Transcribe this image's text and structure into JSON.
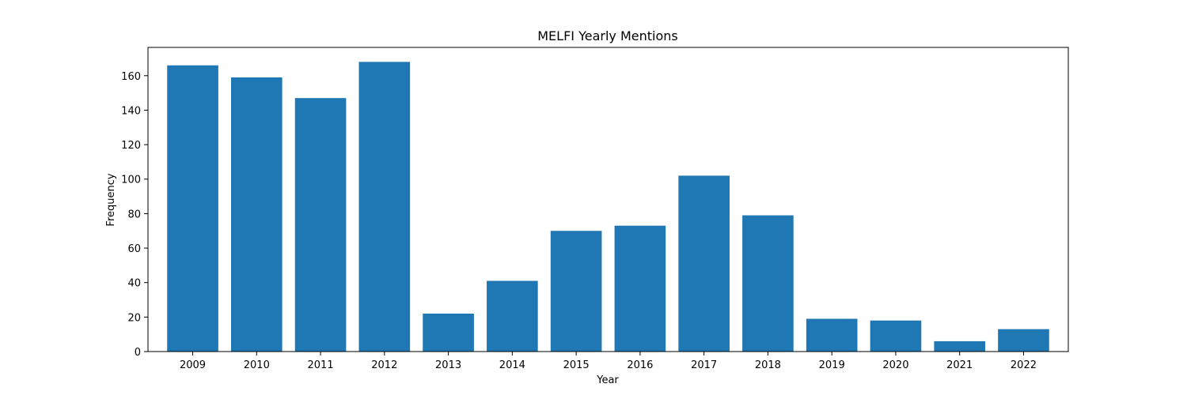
{
  "chart_data": {
    "type": "bar",
    "title": "MELFI Yearly Mentions",
    "xlabel": "Year",
    "ylabel": "Frequency",
    "categories": [
      "2009",
      "2010",
      "2011",
      "2012",
      "2013",
      "2014",
      "2015",
      "2016",
      "2017",
      "2018",
      "2019",
      "2020",
      "2021",
      "2022"
    ],
    "values": [
      166,
      159,
      147,
      168,
      22,
      41,
      70,
      73,
      102,
      79,
      19,
      18,
      6,
      13
    ],
    "ylim": [
      0,
      176.4
    ],
    "yticks": [
      0,
      20,
      40,
      60,
      80,
      100,
      120,
      140,
      160
    ],
    "grid": false,
    "bar_color": "#1f77b4"
  }
}
